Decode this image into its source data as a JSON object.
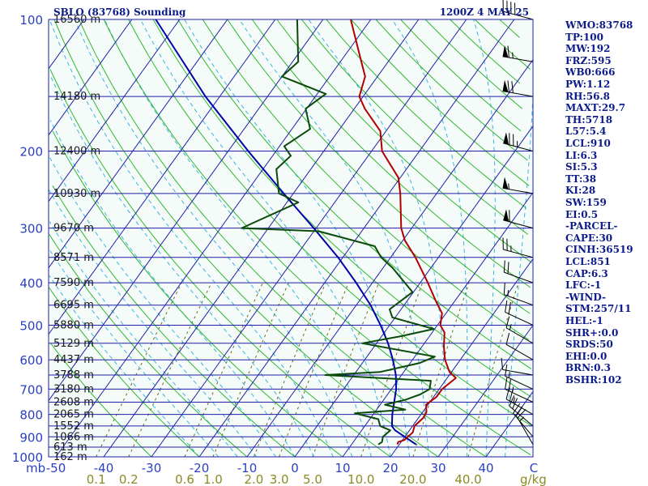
{
  "chart_data": {
    "type": "skew-t sounding",
    "title": "SBLO (83768) Sounding",
    "time_label": "1200Z  4 MAY 25",
    "pressure_axis": {
      "unit_label": "mb",
      "ticks": [
        100,
        200,
        300,
        400,
        500,
        600,
        700,
        800,
        900,
        1000
      ],
      "range": [
        100,
        1000
      ],
      "scale": "log"
    },
    "temperature_axis": {
      "unit": "C",
      "ticks": [
        -50,
        -40,
        -30,
        -20,
        -10,
        0,
        10,
        20,
        30,
        40
      ],
      "range": [
        -50,
        50
      ]
    },
    "mixing_ratio_axis": {
      "unit": "g/kg",
      "ticks": [
        0.1,
        0.2,
        0.6,
        1.0,
        2.0,
        3.0,
        5.0,
        10.0,
        20.0,
        40.0
      ]
    },
    "height_labels": [
      {
        "p": 100,
        "text": "16560 m"
      },
      {
        "p": 150,
        "text": "14180 m"
      },
      {
        "p": 200,
        "text": "12400 m"
      },
      {
        "p": 250,
        "text": "10930 m"
      },
      {
        "p": 300,
        "text": "9670 m"
      },
      {
        "p": 350,
        "text": "8571 m"
      },
      {
        "p": 400,
        "text": "7590 m"
      },
      {
        "p": 450,
        "text": "6695 m"
      },
      {
        "p": 500,
        "text": "5880 m"
      },
      {
        "p": 550,
        "text": "5129 m"
      },
      {
        "p": 600,
        "text": "4437 m"
      },
      {
        "p": 650,
        "text": "3788 m"
      },
      {
        "p": 700,
        "text": "3180 m"
      },
      {
        "p": 750,
        "text": "2608 m"
      },
      {
        "p": 800,
        "text": "2065 m"
      },
      {
        "p": 850,
        "text": "1552 m"
      },
      {
        "p": 900,
        "text": "1066 m"
      },
      {
        "p": 950,
        "text": "613 m"
      },
      {
        "p": 1000,
        "text": "162 m"
      }
    ],
    "temperature_profile": [
      {
        "p": 937,
        "t": 19.6
      },
      {
        "p": 925,
        "t": 19.4
      },
      {
        "p": 915,
        "t": 20.4
      },
      {
        "p": 900,
        "t": 20.6
      },
      {
        "p": 880,
        "t": 21.0
      },
      {
        "p": 850,
        "t": 20.4
      },
      {
        "p": 815,
        "t": 21.0
      },
      {
        "p": 790,
        "t": 20.8
      },
      {
        "p": 760,
        "t": 19.6
      },
      {
        "p": 730,
        "t": 20.6
      },
      {
        "p": 700,
        "t": 20.6
      },
      {
        "p": 660,
        "t": 21.8
      },
      {
        "p": 640,
        "t": 19.6
      },
      {
        "p": 600,
        "t": 16.8
      },
      {
        "p": 560,
        "t": 14.6
      },
      {
        "p": 520,
        "t": 12.6
      },
      {
        "p": 500,
        "t": 10.6
      },
      {
        "p": 470,
        "t": 9.2
      },
      {
        "p": 440,
        "t": 6.0
      },
      {
        "p": 400,
        "t": 1.6
      },
      {
        "p": 350,
        "t": -4.8
      },
      {
        "p": 320,
        "t": -9.6
      },
      {
        "p": 300,
        "t": -12.2
      },
      {
        "p": 250,
        "t": -17.6
      },
      {
        "p": 230,
        "t": -20.4
      },
      {
        "p": 200,
        "t": -27.8
      },
      {
        "p": 180,
        "t": -31.2
      },
      {
        "p": 160,
        "t": -37.8
      },
      {
        "p": 150,
        "t": -40.8
      },
      {
        "p": 135,
        "t": -42.6
      },
      {
        "p": 125,
        "t": -45.6
      },
      {
        "p": 100,
        "t": -54.2
      }
    ],
    "dewpoint_profile": [
      {
        "p": 937,
        "td": 15.6
      },
      {
        "p": 925,
        "td": 16.0
      },
      {
        "p": 900,
        "td": 15.4
      },
      {
        "p": 870,
        "td": 16.0
      },
      {
        "p": 850,
        "td": 13.2
      },
      {
        "p": 820,
        "td": 11.8
      },
      {
        "p": 795,
        "td": 6.0
      },
      {
        "p": 780,
        "td": 16.0
      },
      {
        "p": 760,
        "td": 11.0
      },
      {
        "p": 740,
        "td": 14.6
      },
      {
        "p": 720,
        "td": 16.8
      },
      {
        "p": 700,
        "td": 18.0
      },
      {
        "p": 670,
        "td": 17.0
      },
      {
        "p": 650,
        "td": -6.0
      },
      {
        "p": 640,
        "td": 5.0
      },
      {
        "p": 610,
        "td": 12.0
      },
      {
        "p": 590,
        "td": 14.2
      },
      {
        "p": 550,
        "td": -3.0
      },
      {
        "p": 530,
        "td": 4.0
      },
      {
        "p": 510,
        "td": 9.8
      },
      {
        "p": 480,
        "td": -0.6
      },
      {
        "p": 460,
        "td": -2.4
      },
      {
        "p": 420,
        "td": -0.2
      },
      {
        "p": 370,
        "td": -8.0
      },
      {
        "p": 350,
        "td": -12.0
      },
      {
        "p": 330,
        "td": -15.0
      },
      {
        "p": 305,
        "td": -29.0
      },
      {
        "p": 300,
        "td": -45.6
      },
      {
        "p": 262,
        "td": -37.6
      },
      {
        "p": 250,
        "td": -43.0
      },
      {
        "p": 220,
        "td": -47.2
      },
      {
        "p": 205,
        "td": -46.2
      },
      {
        "p": 195,
        "td": -49.0
      },
      {
        "p": 178,
        "td": -46.2
      },
      {
        "p": 160,
        "td": -50.2
      },
      {
        "p": 148,
        "td": -48.2
      },
      {
        "p": 135,
        "td": -60.0
      },
      {
        "p": 125,
        "td": -58.8
      },
      {
        "p": 100,
        "td": -65.4
      }
    ],
    "parcel_profile": [
      {
        "p": 937,
        "t": 23.5
      },
      {
        "p": 900,
        "t": 20.0
      },
      {
        "p": 870,
        "t": 17.0
      },
      {
        "p": 851,
        "t": 15.7
      },
      {
        "p": 800,
        "t": 14.0
      },
      {
        "p": 700,
        "t": 11.0
      },
      {
        "p": 650,
        "t": 8.8
      },
      {
        "p": 600,
        "t": 5.9
      },
      {
        "p": 550,
        "t": 2.4
      },
      {
        "p": 500,
        "t": -1.9
      },
      {
        "p": 450,
        "t": -7.0
      },
      {
        "p": 400,
        "t": -13.4
      },
      {
        "p": 350,
        "t": -21.0
      },
      {
        "p": 300,
        "t": -30.5
      },
      {
        "p": 250,
        "t": -42.0
      },
      {
        "p": 200,
        "t": -55.8
      },
      {
        "p": 150,
        "t": -73.0
      },
      {
        "p": 100,
        "t": -95.0
      }
    ],
    "wind_barbs": [
      {
        "p": 937,
        "dir": 330,
        "spd": 15
      },
      {
        "p": 900,
        "dir": 320,
        "spd": 20
      },
      {
        "p": 850,
        "dir": 310,
        "spd": 20
      },
      {
        "p": 800,
        "dir": 300,
        "spd": 25
      },
      {
        "p": 750,
        "dir": 295,
        "spd": 25
      },
      {
        "p": 700,
        "dir": 295,
        "spd": 15
      },
      {
        "p": 650,
        "dir": 280,
        "spd": 10
      },
      {
        "p": 600,
        "dir": 300,
        "spd": 10
      },
      {
        "p": 550,
        "dir": 300,
        "spd": 15
      },
      {
        "p": 500,
        "dir": 295,
        "spd": 20
      },
      {
        "p": 450,
        "dir": 290,
        "spd": 15
      },
      {
        "p": 400,
        "dir": 290,
        "spd": 20
      },
      {
        "p": 350,
        "dir": 285,
        "spd": 25
      },
      {
        "p": 300,
        "dir": 285,
        "spd": 60
      },
      {
        "p": 250,
        "dir": 280,
        "spd": 55
      },
      {
        "p": 200,
        "dir": 285,
        "spd": 75
      },
      {
        "p": 150,
        "dir": 280,
        "spd": 70
      },
      {
        "p": 125,
        "dir": 280,
        "spd": 65
      },
      {
        "p": 100,
        "dir": 285,
        "spd": 40
      }
    ],
    "colors": {
      "temperature": "#b00000",
      "dewpoint": "#0b4a0b",
      "parcel": "#0000a8",
      "isobar": "#1f1fa8",
      "isotherm": "#1f1fa8",
      "dry_adiabat": "#2eb82e",
      "moist_adiabat": "#3cb4dc",
      "mixing_ratio": "#6b6b16",
      "text": "#0c1b8a"
    }
  },
  "indices": [
    {
      "label": "WMO:83768"
    },
    {
      "label": "TP:100"
    },
    {
      "label": "MW:192"
    },
    {
      "label": "FRZ:595"
    },
    {
      "label": "WB0:666"
    },
    {
      "label": "PW:1.12"
    },
    {
      "label": "RH:56.8"
    },
    {
      "label": "MAXT:29.7"
    },
    {
      "label": "TH:5718"
    },
    {
      "label": "L57:5.4"
    },
    {
      "label": "LCL:910"
    },
    {
      "label": "LI:6.3"
    },
    {
      "label": "SI:5.3"
    },
    {
      "label": "TT:38"
    },
    {
      "label": "KI:28"
    },
    {
      "label": "SW:159"
    },
    {
      "label": "EI:0.5"
    },
    {
      "label": "-PARCEL-"
    },
    {
      "label": "CAPE:30"
    },
    {
      "label": "CINH:36519"
    },
    {
      "label": "LCL:851"
    },
    {
      "label": "CAP:6.3"
    },
    {
      "label": "LFC:-1"
    },
    {
      "label": "-WIND-"
    },
    {
      "label": "STM:257/11"
    },
    {
      "label": "HEL:-1"
    },
    {
      "label": "SHR+:0.0"
    },
    {
      "label": "SRDS:50"
    },
    {
      "label": "EHI:0.0"
    },
    {
      "label": "BRN:0.3"
    },
    {
      "label": "BSHR:102"
    }
  ]
}
